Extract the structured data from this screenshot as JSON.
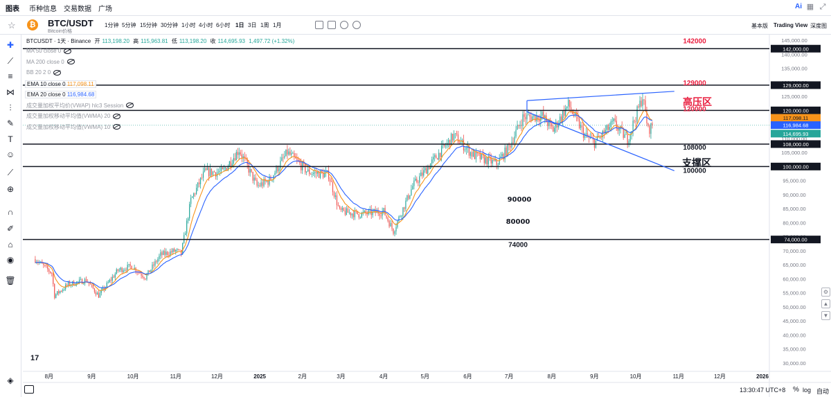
{
  "nav": {
    "tabs": [
      "图表",
      "币种信息",
      "交易数据",
      "广场"
    ],
    "ai_label": "Ai"
  },
  "symbol": {
    "name": "BTC/USDT",
    "subtitle": "Bitcoin价格",
    "intervals": [
      "1分钟",
      "5分钟",
      "15分钟",
      "30分钟",
      "1小时",
      "4小时",
      "6小时",
      "1日",
      "3日",
      "1周",
      "1月"
    ],
    "active_interval": "1日",
    "views": [
      "基本版",
      "Trading View",
      "深度图"
    ]
  },
  "legend": {
    "title": "BTCUSDT · 1天 · Binance",
    "open_label": "开",
    "open": "113,198.20",
    "high_label": "高",
    "high": "115,963.81",
    "low_label": "低",
    "low": "113,198.20",
    "close_label": "收",
    "close": "114,695.93",
    "change": "1,497.72 (+1.32%)",
    "indicators": [
      {
        "label": "MA 50 close 0",
        "value": "",
        "hidden": true
      },
      {
        "label": "MA 200 close 0",
        "value": "",
        "hidden": true
      },
      {
        "label": "BB 20 2 0",
        "value": "",
        "hidden": true
      },
      {
        "label": "EMA 10 close 0",
        "value": "117,098.11",
        "hidden": false,
        "color": "#f7931a"
      },
      {
        "label": "EMA 20 close 0",
        "value": "116,984.68",
        "hidden": false,
        "color": "#2962ff"
      },
      {
        "label": "成交量加权平均价(VWAP) hlc3 Session",
        "value": "",
        "hidden": true
      },
      {
        "label": "成交量加权移动平均值(VWMA) 20",
        "value": "",
        "hidden": true
      },
      {
        "label": "成交量加权移动平均值(VWMA) 10",
        "value": "",
        "hidden": true
      }
    ]
  },
  "chart_data": {
    "type": "candlestick",
    "title": "BTCUSDT · 1天 · Binance",
    "ylim": [
      27000,
      147000
    ],
    "y_ticks": [
      30000,
      35000,
      40000,
      45000,
      50000,
      55000,
      60000,
      65000,
      70000,
      75000,
      80000,
      85000,
      90000,
      95000,
      100000,
      105000,
      110000,
      115000,
      120000,
      125000,
      130000,
      135000,
      140000,
      145000
    ],
    "x_tick_labels": [
      "8月",
      "9月",
      "10月",
      "11月",
      "12月",
      "2025",
      "2月",
      "3月",
      "4月",
      "5月",
      "6月",
      "7月",
      "8月",
      "9月",
      "10月",
      "11月",
      "12月",
      "2026"
    ],
    "close_path": [
      {
        "date": "2024-07-22",
        "close": 67000
      },
      {
        "date": "2024-08-03",
        "close": 62000
      },
      {
        "date": "2024-08-05",
        "close": 54000
      },
      {
        "date": "2024-08-15",
        "close": 58000
      },
      {
        "date": "2024-08-28",
        "close": 59500
      },
      {
        "date": "2024-09-06",
        "close": 54000
      },
      {
        "date": "2024-09-20",
        "close": 63000
      },
      {
        "date": "2024-09-30",
        "close": 64500
      },
      {
        "date": "2024-10-10",
        "close": 60500
      },
      {
        "date": "2024-10-21",
        "close": 68500
      },
      {
        "date": "2024-11-01",
        "close": 70000
      },
      {
        "date": "2024-11-05",
        "close": 69000
      },
      {
        "date": "2024-11-12",
        "close": 88000
      },
      {
        "date": "2024-11-22",
        "close": 98000
      },
      {
        "date": "2024-12-05",
        "close": 98000
      },
      {
        "date": "2024-12-17",
        "close": 106000
      },
      {
        "date": "2024-12-30",
        "close": 93000
      },
      {
        "date": "2025-01-08",
        "close": 95000
      },
      {
        "date": "2025-01-21",
        "close": 105000
      },
      {
        "date": "2025-02-05",
        "close": 98000
      },
      {
        "date": "2025-02-20",
        "close": 97000
      },
      {
        "date": "2025-02-28",
        "close": 84000
      },
      {
        "date": "2025-03-15",
        "close": 83000
      },
      {
        "date": "2025-04-01",
        "close": 84000
      },
      {
        "date": "2025-04-08",
        "close": 77000
      },
      {
        "date": "2025-04-22",
        "close": 93000
      },
      {
        "date": "2025-05-10",
        "close": 104000
      },
      {
        "date": "2025-05-22",
        "close": 111000
      },
      {
        "date": "2025-06-05",
        "close": 104000
      },
      {
        "date": "2025-06-22",
        "close": 101000
      },
      {
        "date": "2025-07-01",
        "close": 107000
      },
      {
        "date": "2025-07-11",
        "close": 117500
      },
      {
        "date": "2025-07-25",
        "close": 118000
      },
      {
        "date": "2025-08-02",
        "close": 113000
      },
      {
        "date": "2025-08-13",
        "close": 122000
      },
      {
        "date": "2025-08-25",
        "close": 111000
      },
      {
        "date": "2025-09-01",
        "close": 108500
      },
      {
        "date": "2025-09-15",
        "close": 115500
      },
      {
        "date": "2025-09-25",
        "close": 109500
      },
      {
        "date": "2025-10-06",
        "close": 125000
      },
      {
        "date": "2025-10-10",
        "close": 113000
      },
      {
        "date": "2025-10-13",
        "close": 114696
      }
    ],
    "ema10_last": 117098.11,
    "ema20_last": 116984.68,
    "last_close": 114695.93,
    "horizontal_lines": [
      {
        "price": 142000,
        "tag": "142,000.00",
        "label": "142000",
        "label_color": "#e91e3f"
      },
      {
        "price": 129000,
        "tag": "129,000.00",
        "label": "129000",
        "label_color": "#e91e3f"
      },
      {
        "price": 120000,
        "tag": "120,000.00",
        "label": "120000",
        "label_color": "#e91e3f"
      },
      {
        "price": 108000,
        "tag": "108,000.00",
        "label": "108000",
        "label_color": "#131722"
      },
      {
        "price": 100000,
        "tag": "100,000.00",
        "label": "100000",
        "label_color": "#131722"
      },
      {
        "price": 74000,
        "tag": "74,000.00",
        "label": "74000",
        "label_color": "#131722"
      }
    ],
    "price_tags": [
      {
        "value": "117,098.11",
        "color": "#f7931a"
      },
      {
        "value": "116,984.68",
        "color": "#2962ff"
      },
      {
        "value": "114,695.93",
        "color": "#26a69a"
      }
    ],
    "annotations": [
      {
        "text": "高压区",
        "color": "#e91e3f"
      },
      {
        "text": "支撑区",
        "color": "#131722"
      },
      {
        "text": "90000",
        "color": "#131722"
      },
      {
        "text": "80000",
        "color": "#131722"
      }
    ],
    "trendlines": [
      {
        "name": "upper",
        "from": {
          "date": "2025-07-14",
          "price": 123500
        },
        "to": {
          "date": "2025-10-29",
          "price": 126800
        }
      },
      {
        "name": "lower",
        "from": {
          "date": "2025-07-14",
          "price": 119500
        },
        "to": {
          "date": "2025-10-29",
          "price": 98500
        }
      }
    ]
  },
  "status": {
    "time": "13:30:47 UTC+8",
    "pct": "%",
    "log": "log",
    "auto": "自动"
  }
}
